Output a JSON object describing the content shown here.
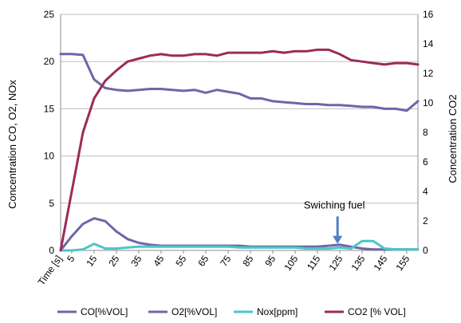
{
  "chart_data": {
    "type": "line",
    "x_label": "Time [s]",
    "x_tick_labels": [
      "5",
      "15",
      "25",
      "35",
      "45",
      "55",
      "65",
      "75",
      "85",
      "95",
      "105",
      "115",
      "125",
      "135",
      "145",
      "155"
    ],
    "y_left": {
      "label": "Concentration CO, O2, NOx",
      "ylim": [
        0,
        25
      ],
      "ticks": [
        0,
        5,
        10,
        15,
        20,
        25
      ]
    },
    "y_right": {
      "label": "Concentration CO2",
      "ylim": [
        0,
        16
      ],
      "ticks": [
        0,
        2,
        4,
        6,
        8,
        10,
        12,
        14,
        16
      ]
    },
    "x": [
      0,
      5,
      10,
      15,
      20,
      25,
      30,
      35,
      40,
      45,
      50,
      55,
      60,
      65,
      70,
      75,
      80,
      85,
      90,
      95,
      100,
      105,
      110,
      115,
      120,
      125,
      130,
      135,
      140,
      145,
      150,
      155,
      160
    ],
    "grid": "horizontal",
    "legend_position": "bottom",
    "series": [
      {
        "name": "CO[%VOL]",
        "axis": "left",
        "color": "#7064aa",
        "values": [
          20.8,
          20.8,
          20.7,
          18.1,
          17.2,
          17.0,
          16.9,
          17.0,
          17.1,
          17.1,
          17.0,
          16.9,
          17.0,
          16.7,
          17.0,
          16.8,
          16.6,
          16.1,
          16.1,
          15.8,
          15.7,
          15.6,
          15.5,
          15.5,
          15.4,
          15.4,
          15.3,
          15.2,
          15.2,
          15.0,
          15.0,
          14.8,
          15.8
        ]
      },
      {
        "name": "O2[%VOL]",
        "axis": "left",
        "color": "#7064aa",
        "values": [
          0.0,
          1.5,
          2.8,
          3.4,
          3.1,
          2.0,
          1.2,
          0.8,
          0.6,
          0.5,
          0.5,
          0.5,
          0.5,
          0.5,
          0.5,
          0.5,
          0.5,
          0.4,
          0.4,
          0.4,
          0.4,
          0.4,
          0.4,
          0.4,
          0.5,
          0.6,
          0.4,
          0.2,
          0.1,
          0.1,
          0.1,
          0.1,
          0.1
        ]
      },
      {
        "name": "Nox[ppm]",
        "axis": "left",
        "color": "#4bc6c6",
        "values": [
          0.0,
          0.0,
          0.1,
          0.7,
          0.2,
          0.2,
          0.3,
          0.4,
          0.4,
          0.4,
          0.4,
          0.4,
          0.4,
          0.4,
          0.4,
          0.4,
          0.3,
          0.3,
          0.3,
          0.3,
          0.3,
          0.3,
          0.2,
          0.2,
          0.2,
          0.3,
          0.2,
          1.0,
          1.0,
          0.2,
          0.1,
          0.1,
          0.1
        ]
      },
      {
        "name": "CO2 [% VOL]",
        "axis": "right",
        "color": "#9b2b5a",
        "values": [
          0.0,
          4.0,
          8.0,
          10.3,
          11.5,
          12.2,
          12.8,
          13.0,
          13.2,
          13.3,
          13.2,
          13.2,
          13.3,
          13.3,
          13.2,
          13.4,
          13.4,
          13.4,
          13.4,
          13.5,
          13.4,
          13.5,
          13.5,
          13.6,
          13.6,
          13.3,
          12.9,
          12.8,
          12.7,
          12.6,
          12.7,
          12.7,
          12.6
        ]
      }
    ],
    "annotation": {
      "text": "Swiching fuel",
      "x": 124,
      "y_start": 3.6,
      "y_end": 0.7
    }
  }
}
